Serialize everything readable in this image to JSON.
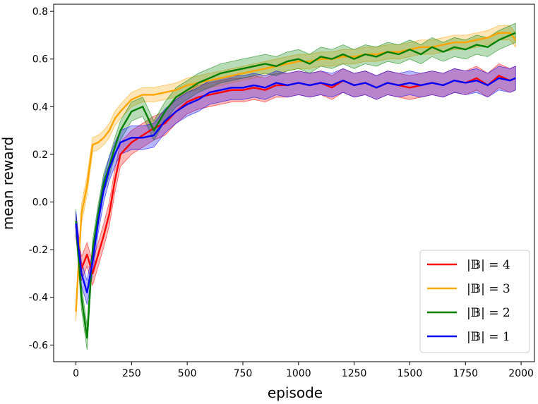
{
  "chart_data": {
    "type": "line",
    "title": "",
    "xlabel": "episode",
    "ylabel": "mean reward",
    "xlim": [
      -100,
      2060
    ],
    "ylim": [
      -0.67,
      0.83
    ],
    "xticks": [
      0,
      250,
      500,
      750,
      1000,
      1250,
      1500,
      1750,
      2000
    ],
    "xtick_labels": [
      "0",
      "250",
      "500",
      "750",
      "1000",
      "1250",
      "1500",
      "1750",
      "2000"
    ],
    "yticks": [
      -0.6,
      -0.4,
      -0.2,
      0.0,
      0.2,
      0.4,
      0.6,
      0.8
    ],
    "ytick_labels": [
      "-0.6",
      "-0.4",
      "-0.2",
      "0.0",
      "0.2",
      "0.4",
      "0.6",
      "0.8"
    ],
    "grid": false,
    "legend_position": "lower-right",
    "x": [
      0,
      25,
      50,
      75,
      100,
      125,
      150,
      175,
      200,
      250,
      300,
      350,
      400,
      450,
      500,
      550,
      600,
      650,
      700,
      750,
      800,
      850,
      900,
      950,
      1000,
      1050,
      1100,
      1150,
      1200,
      1250,
      1300,
      1350,
      1400,
      1450,
      1500,
      1550,
      1600,
      1650,
      1700,
      1750,
      1800,
      1850,
      1900,
      1950,
      1975
    ],
    "series": [
      {
        "name": "|𝔹| = 4",
        "color": "#ff0000",
        "values": [
          -0.1,
          -0.28,
          -0.22,
          -0.3,
          -0.22,
          -0.14,
          -0.05,
          0.09,
          0.2,
          0.25,
          0.28,
          0.31,
          0.33,
          0.38,
          0.42,
          0.44,
          0.45,
          0.46,
          0.47,
          0.47,
          0.48,
          0.47,
          0.49,
          0.49,
          0.5,
          0.49,
          0.5,
          0.48,
          0.51,
          0.49,
          0.5,
          0.48,
          0.5,
          0.49,
          0.48,
          0.49,
          0.5,
          0.49,
          0.51,
          0.5,
          0.52,
          0.49,
          0.53,
          0.51,
          0.52
        ],
        "band": [
          0.05,
          0.05,
          0.05,
          0.05,
          0.05,
          0.05,
          0.05,
          0.05,
          0.05,
          0.05,
          0.05,
          0.05,
          0.05,
          0.05,
          0.05,
          0.05,
          0.05,
          0.05,
          0.05,
          0.05,
          0.05,
          0.05,
          0.05,
          0.05,
          0.05,
          0.05,
          0.05,
          0.05,
          0.05,
          0.05,
          0.05,
          0.05,
          0.05,
          0.05,
          0.05,
          0.05,
          0.05,
          0.05,
          0.05,
          0.05,
          0.05,
          0.05,
          0.05,
          0.05,
          0.05
        ]
      },
      {
        "name": "|𝔹| = 3",
        "color": "#ffa500",
        "values": [
          -0.46,
          -0.05,
          0.07,
          0.24,
          0.25,
          0.27,
          0.3,
          0.35,
          0.38,
          0.43,
          0.45,
          0.45,
          0.46,
          0.47,
          0.49,
          0.5,
          0.51,
          0.52,
          0.53,
          0.54,
          0.55,
          0.56,
          0.57,
          0.58,
          0.59,
          0.59,
          0.6,
          0.6,
          0.61,
          0.61,
          0.62,
          0.62,
          0.63,
          0.63,
          0.64,
          0.65,
          0.65,
          0.66,
          0.67,
          0.67,
          0.68,
          0.69,
          0.71,
          0.71,
          0.68
        ],
        "band": [
          0.04,
          0.04,
          0.04,
          0.03,
          0.03,
          0.03,
          0.03,
          0.03,
          0.03,
          0.03,
          0.03,
          0.03,
          0.03,
          0.03,
          0.03,
          0.03,
          0.03,
          0.03,
          0.03,
          0.03,
          0.03,
          0.03,
          0.03,
          0.03,
          0.03,
          0.03,
          0.03,
          0.03,
          0.03,
          0.03,
          0.03,
          0.03,
          0.03,
          0.03,
          0.03,
          0.03,
          0.03,
          0.03,
          0.03,
          0.03,
          0.03,
          0.03,
          0.03,
          0.03,
          0.03
        ]
      },
      {
        "name": "|𝔹| = 2",
        "color": "#008000",
        "values": [
          -0.08,
          -0.4,
          -0.57,
          -0.2,
          -0.05,
          0.08,
          0.15,
          0.23,
          0.3,
          0.38,
          0.4,
          0.3,
          0.38,
          0.44,
          0.47,
          0.5,
          0.52,
          0.54,
          0.55,
          0.56,
          0.57,
          0.58,
          0.57,
          0.59,
          0.6,
          0.58,
          0.61,
          0.6,
          0.62,
          0.6,
          0.62,
          0.61,
          0.63,
          0.62,
          0.64,
          0.62,
          0.65,
          0.63,
          0.65,
          0.64,
          0.66,
          0.65,
          0.68,
          0.7,
          0.71
        ],
        "band": [
          0.05,
          0.05,
          0.05,
          0.04,
          0.04,
          0.04,
          0.04,
          0.04,
          0.04,
          0.04,
          0.04,
          0.04,
          0.04,
          0.04,
          0.04,
          0.04,
          0.04,
          0.04,
          0.04,
          0.04,
          0.04,
          0.04,
          0.04,
          0.04,
          0.04,
          0.04,
          0.04,
          0.04,
          0.04,
          0.04,
          0.04,
          0.04,
          0.04,
          0.04,
          0.04,
          0.04,
          0.04,
          0.04,
          0.04,
          0.04,
          0.04,
          0.04,
          0.04,
          0.04,
          0.04
        ]
      },
      {
        "name": "|𝔹| = 1",
        "color": "#0000ff",
        "values": [
          -0.09,
          -0.3,
          -0.38,
          -0.25,
          -0.08,
          0.05,
          0.14,
          0.2,
          0.25,
          0.27,
          0.27,
          0.28,
          0.34,
          0.38,
          0.41,
          0.43,
          0.46,
          0.47,
          0.48,
          0.48,
          0.49,
          0.48,
          0.5,
          0.49,
          0.5,
          0.49,
          0.5,
          0.49,
          0.51,
          0.49,
          0.5,
          0.48,
          0.5,
          0.49,
          0.5,
          0.49,
          0.5,
          0.49,
          0.51,
          0.5,
          0.51,
          0.49,
          0.52,
          0.51,
          0.52
        ],
        "band": [
          0.05,
          0.05,
          0.05,
          0.05,
          0.05,
          0.05,
          0.05,
          0.05,
          0.05,
          0.05,
          0.05,
          0.05,
          0.05,
          0.05,
          0.05,
          0.05,
          0.05,
          0.05,
          0.05,
          0.05,
          0.05,
          0.05,
          0.05,
          0.05,
          0.05,
          0.05,
          0.05,
          0.05,
          0.05,
          0.05,
          0.05,
          0.05,
          0.05,
          0.05,
          0.05,
          0.05,
          0.05,
          0.05,
          0.05,
          0.05,
          0.05,
          0.05,
          0.05,
          0.05,
          0.05
        ]
      }
    ]
  }
}
